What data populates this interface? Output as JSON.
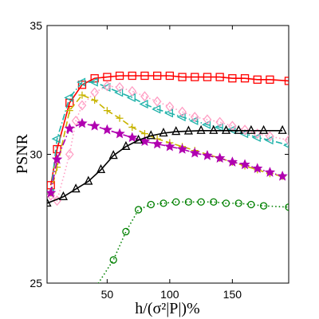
{
  "chart_data": {
    "type": "line",
    "xlabel": "h/(σ²|P|)%",
    "ylabel": "PSNR",
    "xlim": [
      2,
      195
    ],
    "ylim": [
      25,
      35
    ],
    "x_ticks": [
      50,
      100,
      150
    ],
    "y_ticks": [
      25,
      30,
      35
    ],
    "grid": false,
    "series": [
      {
        "color": "#ff0000",
        "marker": "square",
        "dash": "solid",
        "x": [
          5,
          10,
          20,
          30,
          40,
          50,
          60,
          70,
          80,
          90,
          100,
          110,
          120,
          130,
          140,
          150,
          160,
          170,
          180,
          195
        ],
        "y": [
          28.8,
          30.2,
          32.0,
          32.7,
          32.95,
          33.0,
          33.05,
          33.05,
          33.05,
          33.05,
          33.05,
          33.0,
          33.0,
          33.0,
          33.0,
          32.95,
          32.95,
          32.9,
          32.9,
          32.85
        ]
      },
      {
        "color": "#20b2aa",
        "marker": "triangle-left",
        "dash": "dashdot",
        "x": [
          5,
          10,
          20,
          30,
          40,
          50,
          60,
          70,
          80,
          90,
          100,
          110,
          120,
          130,
          140,
          150,
          160,
          170,
          180,
          195
        ],
        "y": [
          28.5,
          30.6,
          32.2,
          32.8,
          32.8,
          32.6,
          32.4,
          32.2,
          31.95,
          31.75,
          31.6,
          31.45,
          31.3,
          31.15,
          31.05,
          30.95,
          30.8,
          30.65,
          30.55,
          30.35
        ]
      },
      {
        "color": "#ff9ec4",
        "marker": "diamond",
        "dash": "dotted",
        "x": [
          5,
          10,
          20,
          25,
          30,
          40,
          50,
          60,
          70,
          80,
          90,
          100,
          110,
          120,
          130,
          140,
          150,
          160,
          170,
          180,
          195
        ],
        "y": [
          28.4,
          28.2,
          30.0,
          31.3,
          31.9,
          32.4,
          32.65,
          32.6,
          32.45,
          32.25,
          32.05,
          31.85,
          31.65,
          31.45,
          31.35,
          31.25,
          31.1,
          30.95,
          30.8,
          30.7,
          30.55
        ]
      },
      {
        "color": "#c8b400",
        "marker": "plus",
        "dash": "dashed",
        "x": [
          5,
          10,
          20,
          30,
          40,
          50,
          60,
          70,
          80,
          90,
          100,
          110,
          120,
          130,
          140,
          150,
          160,
          170,
          180,
          190
        ],
        "y": [
          28.5,
          29.5,
          31.7,
          32.3,
          32.1,
          31.7,
          31.4,
          31.05,
          30.8,
          30.6,
          30.45,
          30.3,
          30.15,
          30.0,
          29.85,
          29.7,
          29.55,
          29.4,
          29.25,
          29.15
        ]
      },
      {
        "color": "#b000b0",
        "marker": "star",
        "dash": "dashdot",
        "x": [
          5,
          10,
          20,
          30,
          40,
          50,
          60,
          70,
          80,
          90,
          100,
          110,
          120,
          130,
          140,
          150,
          160,
          170,
          180,
          190
        ],
        "y": [
          28.5,
          29.8,
          31.0,
          31.2,
          31.1,
          30.95,
          30.8,
          30.65,
          30.5,
          30.4,
          30.3,
          30.2,
          30.05,
          29.95,
          29.85,
          29.7,
          29.6,
          29.45,
          29.3,
          29.15
        ]
      },
      {
        "color": "#000000",
        "marker": "triangle-up",
        "dash": "solid",
        "x": [
          2,
          15,
          25,
          35,
          45,
          55,
          65,
          75,
          85,
          95,
          105,
          115,
          125,
          135,
          145,
          155,
          165,
          175,
          190
        ],
        "y": [
          28.1,
          28.35,
          28.65,
          28.95,
          29.4,
          29.95,
          30.3,
          30.55,
          30.72,
          30.82,
          30.88,
          30.9,
          30.92,
          30.92,
          30.92,
          30.92,
          30.92,
          30.92,
          30.92
        ]
      },
      {
        "color": "#008000",
        "marker": "circle",
        "dash": "dotted",
        "x": [
          35,
          55,
          65,
          75,
          85,
          95,
          105,
          115,
          125,
          135,
          145,
          155,
          165,
          175,
          195
        ],
        "y": [
          24.4,
          25.9,
          27.0,
          27.85,
          28.05,
          28.1,
          28.15,
          28.15,
          28.15,
          28.15,
          28.1,
          28.1,
          28.05,
          28.0,
          27.95
        ]
      }
    ]
  }
}
